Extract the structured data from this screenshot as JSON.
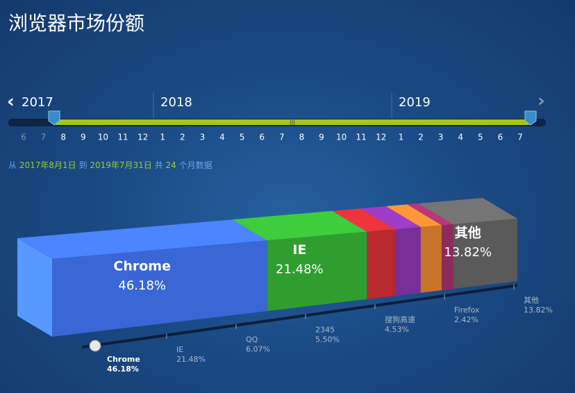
{
  "header": {
    "title": "浏览器市场份额"
  },
  "timeline": {
    "years": [
      "2017",
      "2018",
      "2019"
    ],
    "months": [
      6,
      7,
      8,
      9,
      10,
      11,
      12,
      1,
      2,
      3,
      4,
      5,
      6,
      7,
      8,
      9,
      10,
      11,
      12,
      1,
      2,
      3,
      4,
      5,
      6,
      7
    ]
  },
  "range": {
    "from": "从",
    "start": "2017年8月1日",
    "to": "到",
    "end": "2019年7月31日",
    "total": "共",
    "count": "24",
    "unit": "个月数据"
  },
  "chart_data": {
    "type": "bar",
    "stacked": true,
    "categories": [
      "Chrome",
      "IE",
      "QQ",
      "2345",
      "搜狗高速",
      "Firefox",
      "其他"
    ],
    "values": [
      46.18,
      21.48,
      6.07,
      5.5,
      4.53,
      2.42,
      13.82
    ],
    "value_labels": [
      "46.18%",
      "21.48%",
      "6.07%",
      "5.50%",
      "4.53%",
      "2.42%",
      "13.82%"
    ],
    "colors": [
      "#3a66d6",
      "#2f9e2f",
      "#b8282f",
      "#7a2f98",
      "#c8742a",
      "#8e2a5c",
      "#5a5a5a"
    ]
  }
}
